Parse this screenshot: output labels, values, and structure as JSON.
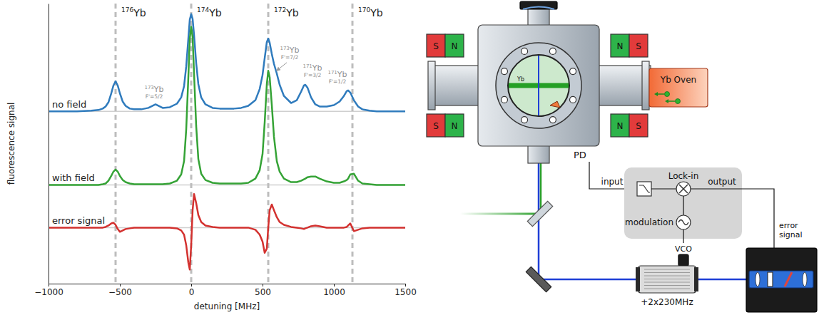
{
  "chart_data": {
    "type": "line",
    "x_label": "detuning [MHz]",
    "y_label": "fluorescence signal",
    "xlim": [
      -1000,
      1500
    ],
    "ylim": [
      0,
      4
    ],
    "xticks": [
      {
        "value": -1000,
        "label": "−1000"
      },
      {
        "value": -500,
        "label": "−500"
      },
      0,
      500,
      1000,
      1500
    ],
    "tick_labels": "x",
    "x": [
      -1000,
      -900,
      -800,
      -700,
      -650,
      -620,
      -600,
      -580,
      -560,
      -545,
      -530,
      -515,
      -500,
      -480,
      -460,
      -430,
      -400,
      -350,
      -300,
      -270,
      -250,
      -230,
      -200,
      -150,
      -100,
      -70,
      -50,
      -35,
      -20,
      -10,
      0,
      10,
      20,
      35,
      50,
      70,
      100,
      150,
      200,
      250,
      300,
      350,
      400,
      450,
      480,
      500,
      515,
      530,
      540,
      550,
      565,
      580,
      600,
      620,
      650,
      700,
      740,
      770,
      790,
      800,
      815,
      840,
      870,
      900,
      950,
      1000,
      1040,
      1070,
      1090,
      1100,
      1115,
      1140,
      1170,
      1200,
      1250,
      1300,
      1400,
      1500
    ],
    "series": [
      {
        "name": "no field",
        "color": "#2f7bbd",
        "baseline": 2.46,
        "values": [
          2.46,
          2.46,
          2.46,
          2.47,
          2.48,
          2.5,
          2.53,
          2.59,
          2.72,
          2.83,
          2.89,
          2.83,
          2.72,
          2.6,
          2.54,
          2.5,
          2.49,
          2.49,
          2.51,
          2.54,
          2.56,
          2.54,
          2.51,
          2.52,
          2.57,
          2.66,
          2.82,
          3.1,
          3.5,
          3.77,
          3.85,
          3.78,
          3.55,
          3.15,
          2.85,
          2.66,
          2.56,
          2.51,
          2.5,
          2.5,
          2.5,
          2.51,
          2.54,
          2.62,
          2.78,
          2.98,
          3.22,
          3.45,
          3.5,
          3.44,
          3.28,
          3.14,
          3.0,
          2.84,
          2.68,
          2.58,
          2.62,
          2.74,
          2.83,
          2.84,
          2.8,
          2.66,
          2.56,
          2.53,
          2.53,
          2.55,
          2.6,
          2.68,
          2.75,
          2.76,
          2.73,
          2.62,
          2.53,
          2.49,
          2.47,
          2.46,
          2.46,
          2.46
        ]
      },
      {
        "name": "with field",
        "color": "#35a336",
        "baseline": 1.41,
        "values": [
          1.41,
          1.41,
          1.41,
          1.41,
          1.41,
          1.42,
          1.43,
          1.47,
          1.54,
          1.6,
          1.63,
          1.6,
          1.54,
          1.48,
          1.45,
          1.43,
          1.42,
          1.42,
          1.42,
          1.42,
          1.42,
          1.42,
          1.42,
          1.43,
          1.47,
          1.56,
          1.75,
          2.2,
          2.95,
          3.5,
          3.67,
          3.52,
          3.0,
          2.25,
          1.78,
          1.57,
          1.48,
          1.44,
          1.43,
          1.43,
          1.43,
          1.43,
          1.44,
          1.5,
          1.62,
          1.85,
          2.3,
          2.85,
          3.04,
          2.95,
          2.55,
          2.1,
          1.75,
          1.6,
          1.5,
          1.45,
          1.45,
          1.47,
          1.49,
          1.5,
          1.52,
          1.53,
          1.53,
          1.5,
          1.46,
          1.44,
          1.44,
          1.46,
          1.48,
          1.5,
          1.56,
          1.57,
          1.47,
          1.43,
          1.42,
          1.41,
          1.41,
          1.41
        ]
      },
      {
        "name": "error signal",
        "color": "#d3312f",
        "baseline": 0.8,
        "values": [
          0.8,
          0.8,
          0.8,
          0.8,
          0.8,
          0.8,
          0.81,
          0.83,
          0.86,
          0.87,
          0.84,
          0.78,
          0.74,
          0.76,
          0.78,
          0.79,
          0.8,
          0.8,
          0.8,
          0.8,
          0.8,
          0.8,
          0.8,
          0.8,
          0.79,
          0.76,
          0.7,
          0.55,
          0.3,
          0.2,
          0.55,
          1.05,
          1.28,
          1.15,
          0.98,
          0.88,
          0.83,
          0.81,
          0.8,
          0.8,
          0.8,
          0.8,
          0.8,
          0.77,
          0.7,
          0.6,
          0.44,
          0.5,
          0.8,
          1.05,
          1.13,
          1.05,
          0.95,
          0.88,
          0.84,
          0.81,
          0.8,
          0.79,
          0.78,
          0.79,
          0.8,
          0.82,
          0.83,
          0.82,
          0.8,
          0.8,
          0.8,
          0.8,
          0.81,
          0.83,
          0.86,
          0.75,
          0.77,
          0.79,
          0.8,
          0.8,
          0.8,
          0.8
        ]
      }
    ],
    "vlines": [
      {
        "x": -530,
        "mass": "176",
        "element": "Yb"
      },
      {
        "x": 0,
        "mass": "174",
        "element": "Yb"
      },
      {
        "x": 540,
        "mass": "172",
        "element": "Yb"
      },
      {
        "x": 1130,
        "mass": "170",
        "element": "Yb"
      }
    ],
    "annotations": [
      {
        "mass": "173",
        "element": "Yb",
        "level": "F'=5/2",
        "x": -260,
        "y": 2.74
      },
      {
        "mass": "173",
        "element": "Yb",
        "level": "F'=7/2",
        "x": 690,
        "y": 3.3,
        "arrow_to": [
          598,
          3.04
        ]
      },
      {
        "mass": "171",
        "element": "Yb",
        "level": "F'=3/2",
        "x": 850,
        "y": 3.04
      },
      {
        "mass": "171",
        "element": "Yb",
        "level": "F'=1/2",
        "x": 1025,
        "y": 2.95
      }
    ]
  },
  "diagram": {
    "chamber_label": "Yb",
    "oven": "Yb Oven",
    "magnets": [
      [
        "S",
        "N"
      ],
      [
        "S",
        "N"
      ],
      [
        "N",
        "S"
      ],
      [
        "N",
        "S"
      ]
    ],
    "photodiode": "PD",
    "lock_in": {
      "title": "Lock-in",
      "input": "input",
      "output": "output",
      "modulation": "modulation"
    },
    "vco": "VCO",
    "aom": "+2x230MHz",
    "error_signal": "error signal"
  }
}
